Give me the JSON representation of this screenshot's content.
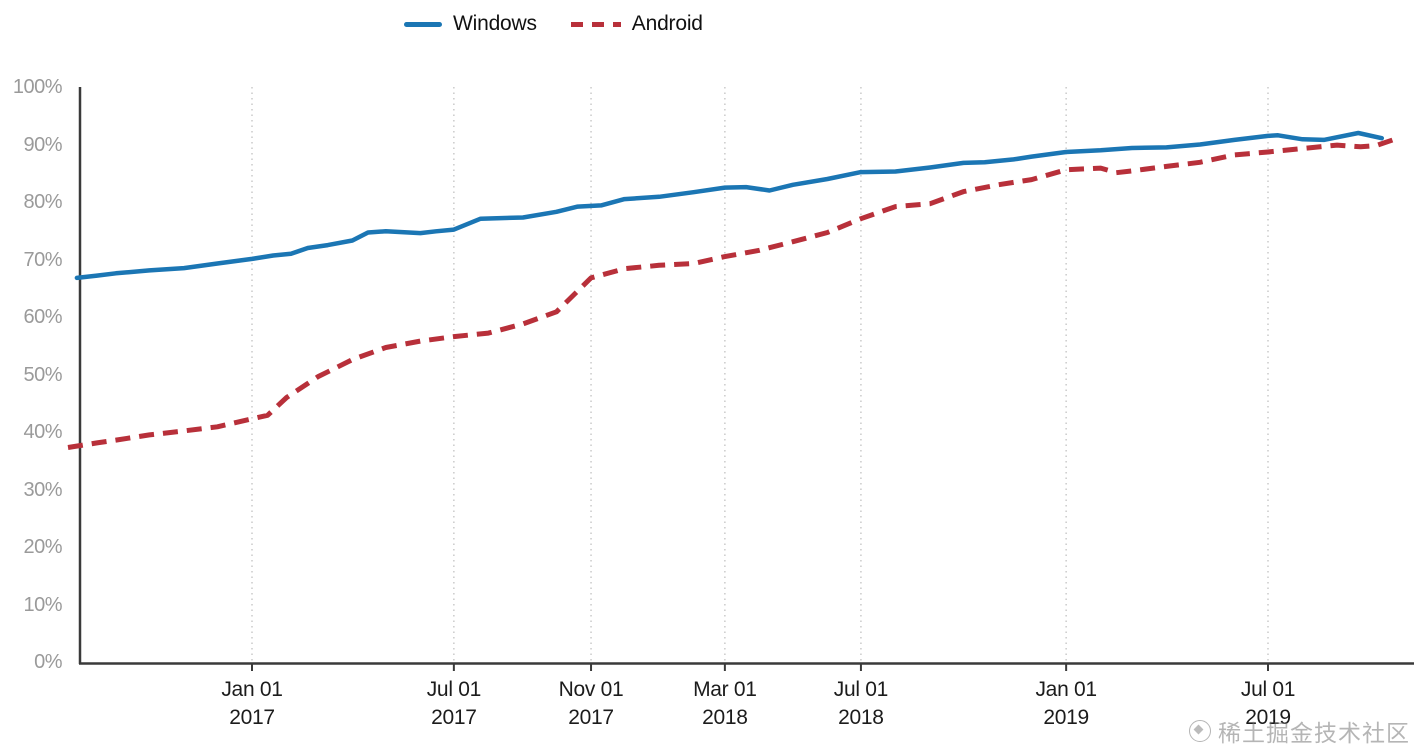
{
  "colors": {
    "windows_blue": "#1b76b4",
    "android_red": "#b8303a",
    "grid": "#c6c6c6",
    "axis": "#3a3a3a",
    "y_label": "#9a9a9a",
    "x_label": "#1c1c1c"
  },
  "legend": {
    "items": [
      {
        "label": "Windows",
        "swatch": "solid-blue-line"
      },
      {
        "label": "Android",
        "swatch": "dashed-red-line"
      }
    ]
  },
  "watermark": {
    "text": "稀土掘金技术社区",
    "logo": "juejin-logo"
  },
  "chart_data": {
    "type": "line",
    "title": "",
    "xlabel": "",
    "ylabel": "",
    "grid": "vertical-dotted",
    "legend_position": "top",
    "x_axis": {
      "kind": "date",
      "start": "2016-07-20",
      "end": "2019-11-01",
      "ticks": [
        {
          "date": "2017-01-01",
          "line1": "Jan 01",
          "line2": "2017"
        },
        {
          "date": "2017-07-01",
          "line1": "Jul 01",
          "line2": "2017"
        },
        {
          "date": "2017-11-01",
          "line1": "Nov 01",
          "line2": "2017"
        },
        {
          "date": "2018-03-01",
          "line1": "Mar 01",
          "line2": "2018"
        },
        {
          "date": "2018-07-01",
          "line1": "Jul 01",
          "line2": "2018"
        },
        {
          "date": "2019-01-01",
          "line1": "Jan 01",
          "line2": "2019"
        },
        {
          "date": "2019-07-01",
          "line1": "Jul 01",
          "line2": "2019"
        }
      ]
    },
    "y_axis": {
      "min": 0,
      "max": 100,
      "unit": "%",
      "ticks": [
        {
          "value": 0,
          "label": "0%"
        },
        {
          "value": 10,
          "label": "10%"
        },
        {
          "value": 20,
          "label": "20%"
        },
        {
          "value": 30,
          "label": "30%"
        },
        {
          "value": 40,
          "label": "40%"
        },
        {
          "value": 50,
          "label": "50%"
        },
        {
          "value": 60,
          "label": "60%"
        },
        {
          "value": 70,
          "label": "70%"
        },
        {
          "value": 80,
          "label": "80%"
        },
        {
          "value": 90,
          "label": "90%"
        },
        {
          "value": 100,
          "label": "100%"
        }
      ]
    },
    "series": [
      {
        "name": "Windows",
        "style": "solid",
        "color_key": "windows_blue",
        "points": [
          [
            "2016-07-28",
            66.8
          ],
          [
            "2016-08-15",
            67.2
          ],
          [
            "2016-09-01",
            67.6
          ],
          [
            "2016-10-01",
            68.1
          ],
          [
            "2016-11-01",
            68.5
          ],
          [
            "2016-12-01",
            69.3
          ],
          [
            "2017-01-01",
            70.1
          ],
          [
            "2017-01-20",
            70.7
          ],
          [
            "2017-02-05",
            71.0
          ],
          [
            "2017-02-20",
            72.0
          ],
          [
            "2017-03-10",
            72.5
          ],
          [
            "2017-04-01",
            73.3
          ],
          [
            "2017-04-15",
            74.7
          ],
          [
            "2017-05-01",
            74.9
          ],
          [
            "2017-06-01",
            74.6
          ],
          [
            "2017-06-15",
            74.9
          ],
          [
            "2017-07-01",
            75.2
          ],
          [
            "2017-07-25",
            77.1
          ],
          [
            "2017-09-01",
            77.3
          ],
          [
            "2017-10-01",
            78.3
          ],
          [
            "2017-10-20",
            79.2
          ],
          [
            "2017-11-10",
            79.4
          ],
          [
            "2017-12-01",
            80.5
          ],
          [
            "2018-01-01",
            80.9
          ],
          [
            "2018-02-01",
            81.7
          ],
          [
            "2018-03-01",
            82.5
          ],
          [
            "2018-03-20",
            82.6
          ],
          [
            "2018-04-10",
            82.0
          ],
          [
            "2018-05-01",
            83.0
          ],
          [
            "2018-06-01",
            84.0
          ],
          [
            "2018-07-01",
            85.2
          ],
          [
            "2018-08-01",
            85.3
          ],
          [
            "2018-09-01",
            86.0
          ],
          [
            "2018-10-01",
            86.8
          ],
          [
            "2018-10-20",
            86.9
          ],
          [
            "2018-11-15",
            87.4
          ],
          [
            "2018-12-01",
            87.9
          ],
          [
            "2019-01-01",
            88.7
          ],
          [
            "2019-02-01",
            89.0
          ],
          [
            "2019-03-01",
            89.4
          ],
          [
            "2019-04-01",
            89.5
          ],
          [
            "2019-05-01",
            90.0
          ],
          [
            "2019-06-01",
            90.8
          ],
          [
            "2019-07-01",
            91.5
          ],
          [
            "2019-07-10",
            91.6
          ],
          [
            "2019-08-01",
            90.9
          ],
          [
            "2019-08-20",
            90.8
          ],
          [
            "2019-09-20",
            92.0
          ],
          [
            "2019-10-11",
            91.1
          ]
        ]
      },
      {
        "name": "Android",
        "style": "dashed",
        "color_key": "android_red",
        "points": [
          [
            "2016-07-20",
            37.3
          ],
          [
            "2016-08-15",
            38.1
          ],
          [
            "2016-09-01",
            38.6
          ],
          [
            "2016-10-01",
            39.5
          ],
          [
            "2016-11-01",
            40.2
          ],
          [
            "2016-12-01",
            40.9
          ],
          [
            "2017-01-01",
            42.3
          ],
          [
            "2017-01-15",
            42.9
          ],
          [
            "2017-02-01",
            46.0
          ],
          [
            "2017-03-01",
            49.6
          ],
          [
            "2017-04-01",
            52.6
          ],
          [
            "2017-05-01",
            54.7
          ],
          [
            "2017-06-01",
            55.8
          ],
          [
            "2017-07-01",
            56.6
          ],
          [
            "2017-08-01",
            57.2
          ],
          [
            "2017-09-01",
            58.8
          ],
          [
            "2017-10-01",
            60.9
          ],
          [
            "2017-11-01",
            66.8
          ],
          [
            "2017-12-01",
            68.4
          ],
          [
            "2018-01-01",
            69.0
          ],
          [
            "2018-02-01",
            69.3
          ],
          [
            "2018-03-01",
            70.5
          ],
          [
            "2018-04-01",
            71.6
          ],
          [
            "2018-05-01",
            73.1
          ],
          [
            "2018-06-01",
            74.7
          ],
          [
            "2018-07-01",
            77.1
          ],
          [
            "2018-08-01",
            79.2
          ],
          [
            "2018-09-01",
            79.7
          ],
          [
            "2018-10-01",
            81.8
          ],
          [
            "2018-11-01",
            83.0
          ],
          [
            "2018-12-01",
            83.9
          ],
          [
            "2019-01-01",
            85.6
          ],
          [
            "2019-02-01",
            85.9
          ],
          [
            "2019-02-15",
            85.1
          ],
          [
            "2019-03-01",
            85.4
          ],
          [
            "2019-04-01",
            86.2
          ],
          [
            "2019-05-01",
            86.9
          ],
          [
            "2019-06-01",
            88.2
          ],
          [
            "2019-07-01",
            88.7
          ],
          [
            "2019-08-01",
            89.3
          ],
          [
            "2019-09-01",
            89.9
          ],
          [
            "2019-09-22",
            89.6
          ],
          [
            "2019-10-06",
            89.8
          ],
          [
            "2019-10-27",
            91.2
          ]
        ]
      }
    ]
  }
}
